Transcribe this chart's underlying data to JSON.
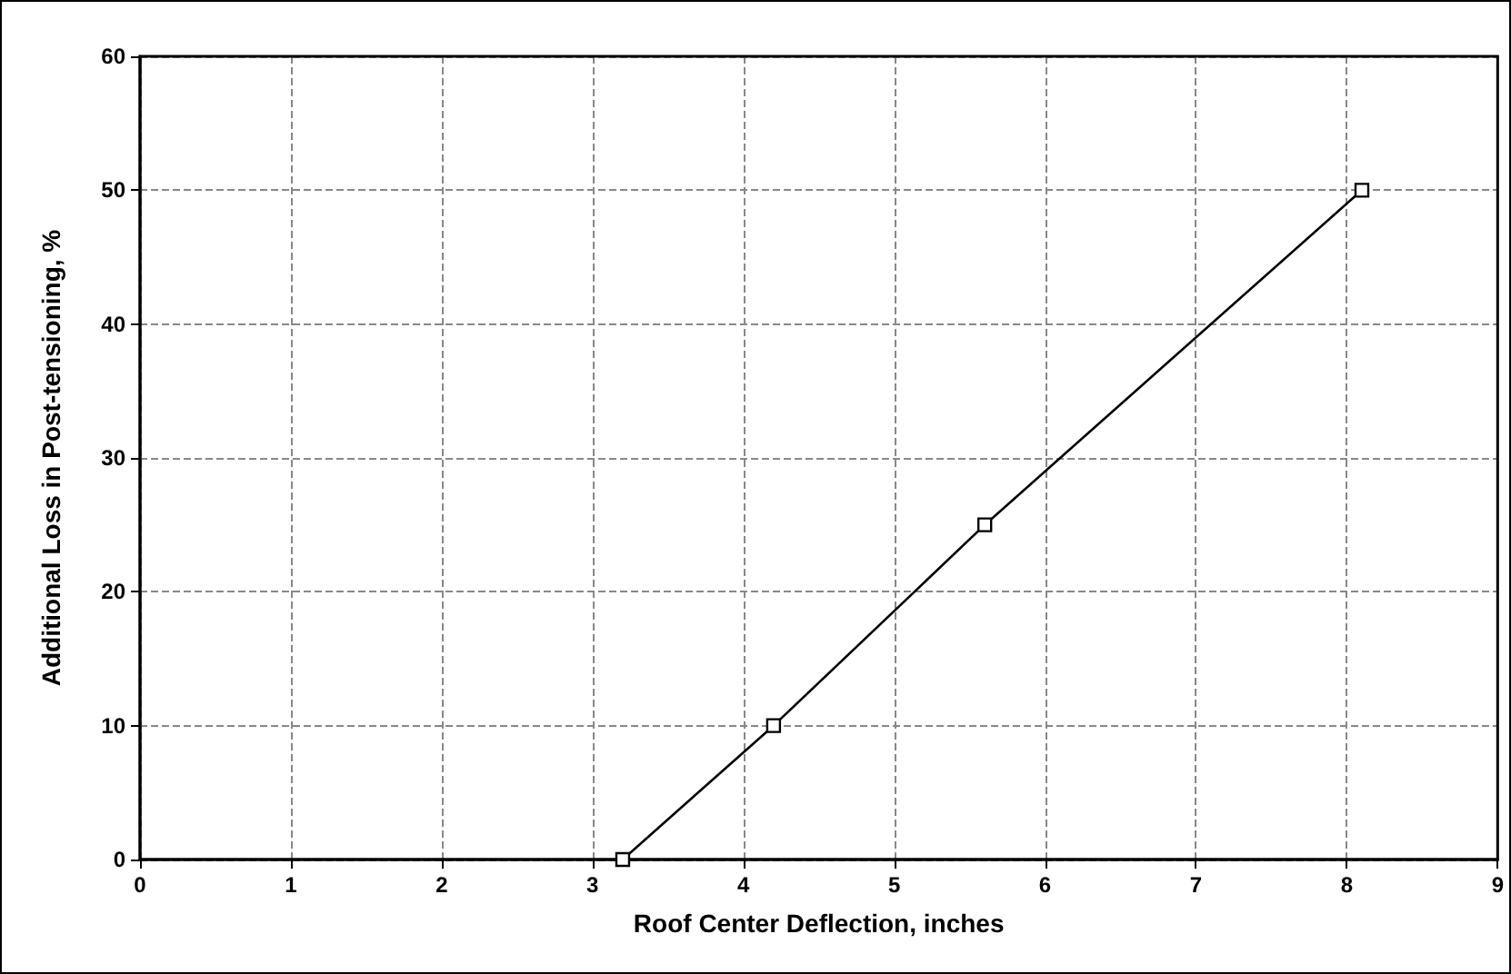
{
  "chart_data": {
    "type": "line",
    "xlabel": "Roof Center Deflection, inches",
    "ylabel": "Additional Loss in Post-tensioning, %",
    "x": [
      3.2,
      4.2,
      5.6,
      8.1
    ],
    "series": [
      {
        "color": "#000000",
        "values": [
          0,
          10,
          25,
          50
        ]
      }
    ],
    "xlim": [
      0,
      9
    ],
    "xticks": [
      0,
      1,
      2,
      3,
      4,
      5,
      6,
      7,
      8,
      9
    ],
    "ylim": [
      0,
      60
    ],
    "yticks": [
      0,
      10,
      20,
      30,
      40,
      50,
      60
    ],
    "grid": true,
    "marker": "square",
    "line_style": "solid"
  }
}
